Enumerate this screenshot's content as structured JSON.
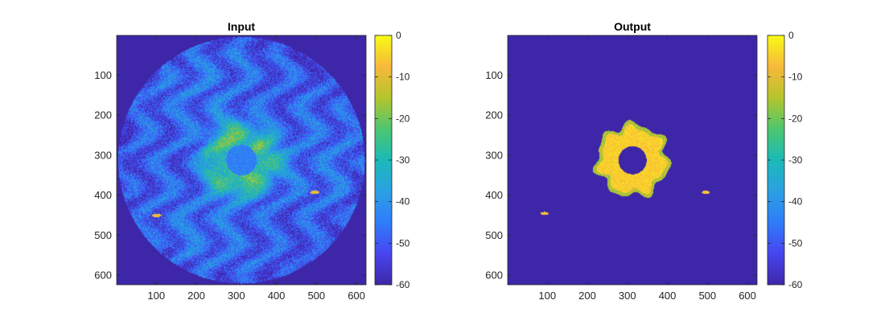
{
  "chart_data": [
    {
      "type": "heatmap",
      "title": "Input",
      "xlabel": "",
      "ylabel": "",
      "xlim": [
        1,
        624
      ],
      "ylim": [
        1,
        624
      ],
      "x_ticks": [
        "100",
        "200",
        "300",
        "400",
        "500",
        "600"
      ],
      "y_ticks": [
        "100",
        "200",
        "300",
        "400",
        "500",
        "600"
      ],
      "grid": false,
      "colormap": "parula",
      "colorbar": {
        "range": [
          -60,
          0
        ],
        "ticks": [
          "0",
          "-10",
          "-20",
          "-30",
          "-40",
          "-50",
          "-60"
        ]
      },
      "features": {
        "aperture_center": [
          312,
          312
        ],
        "aperture_radius": 308,
        "inner_hole_radius": 38,
        "bright_ring_level_db": -25,
        "speckle_background_db": -48,
        "small_targets": [
          [
            100,
            450
          ],
          [
            495,
            392
          ]
        ]
      }
    },
    {
      "type": "heatmap",
      "title": "Output",
      "xlabel": "",
      "ylabel": "",
      "xlim": [
        1,
        624
      ],
      "ylim": [
        1,
        624
      ],
      "x_ticks": [
        "100",
        "200",
        "300",
        "400",
        "500",
        "600"
      ],
      "y_ticks": [
        "100",
        "200",
        "300",
        "400",
        "500",
        "600"
      ],
      "grid": false,
      "colormap": "parula",
      "colorbar": {
        "range": [
          -60,
          0
        ],
        "ticks": [
          "0",
          "-10",
          "-20",
          "-30",
          "-40",
          "-50",
          "-60"
        ]
      },
      "features": {
        "background_db": -60,
        "ring_center": [
          312,
          312
        ],
        "ring_inner_radius": 35,
        "ring_outer_radius": 90,
        "ring_level_db": -5,
        "small_targets": [
          [
            92,
            445
          ],
          [
            495,
            392
          ]
        ]
      }
    }
  ]
}
